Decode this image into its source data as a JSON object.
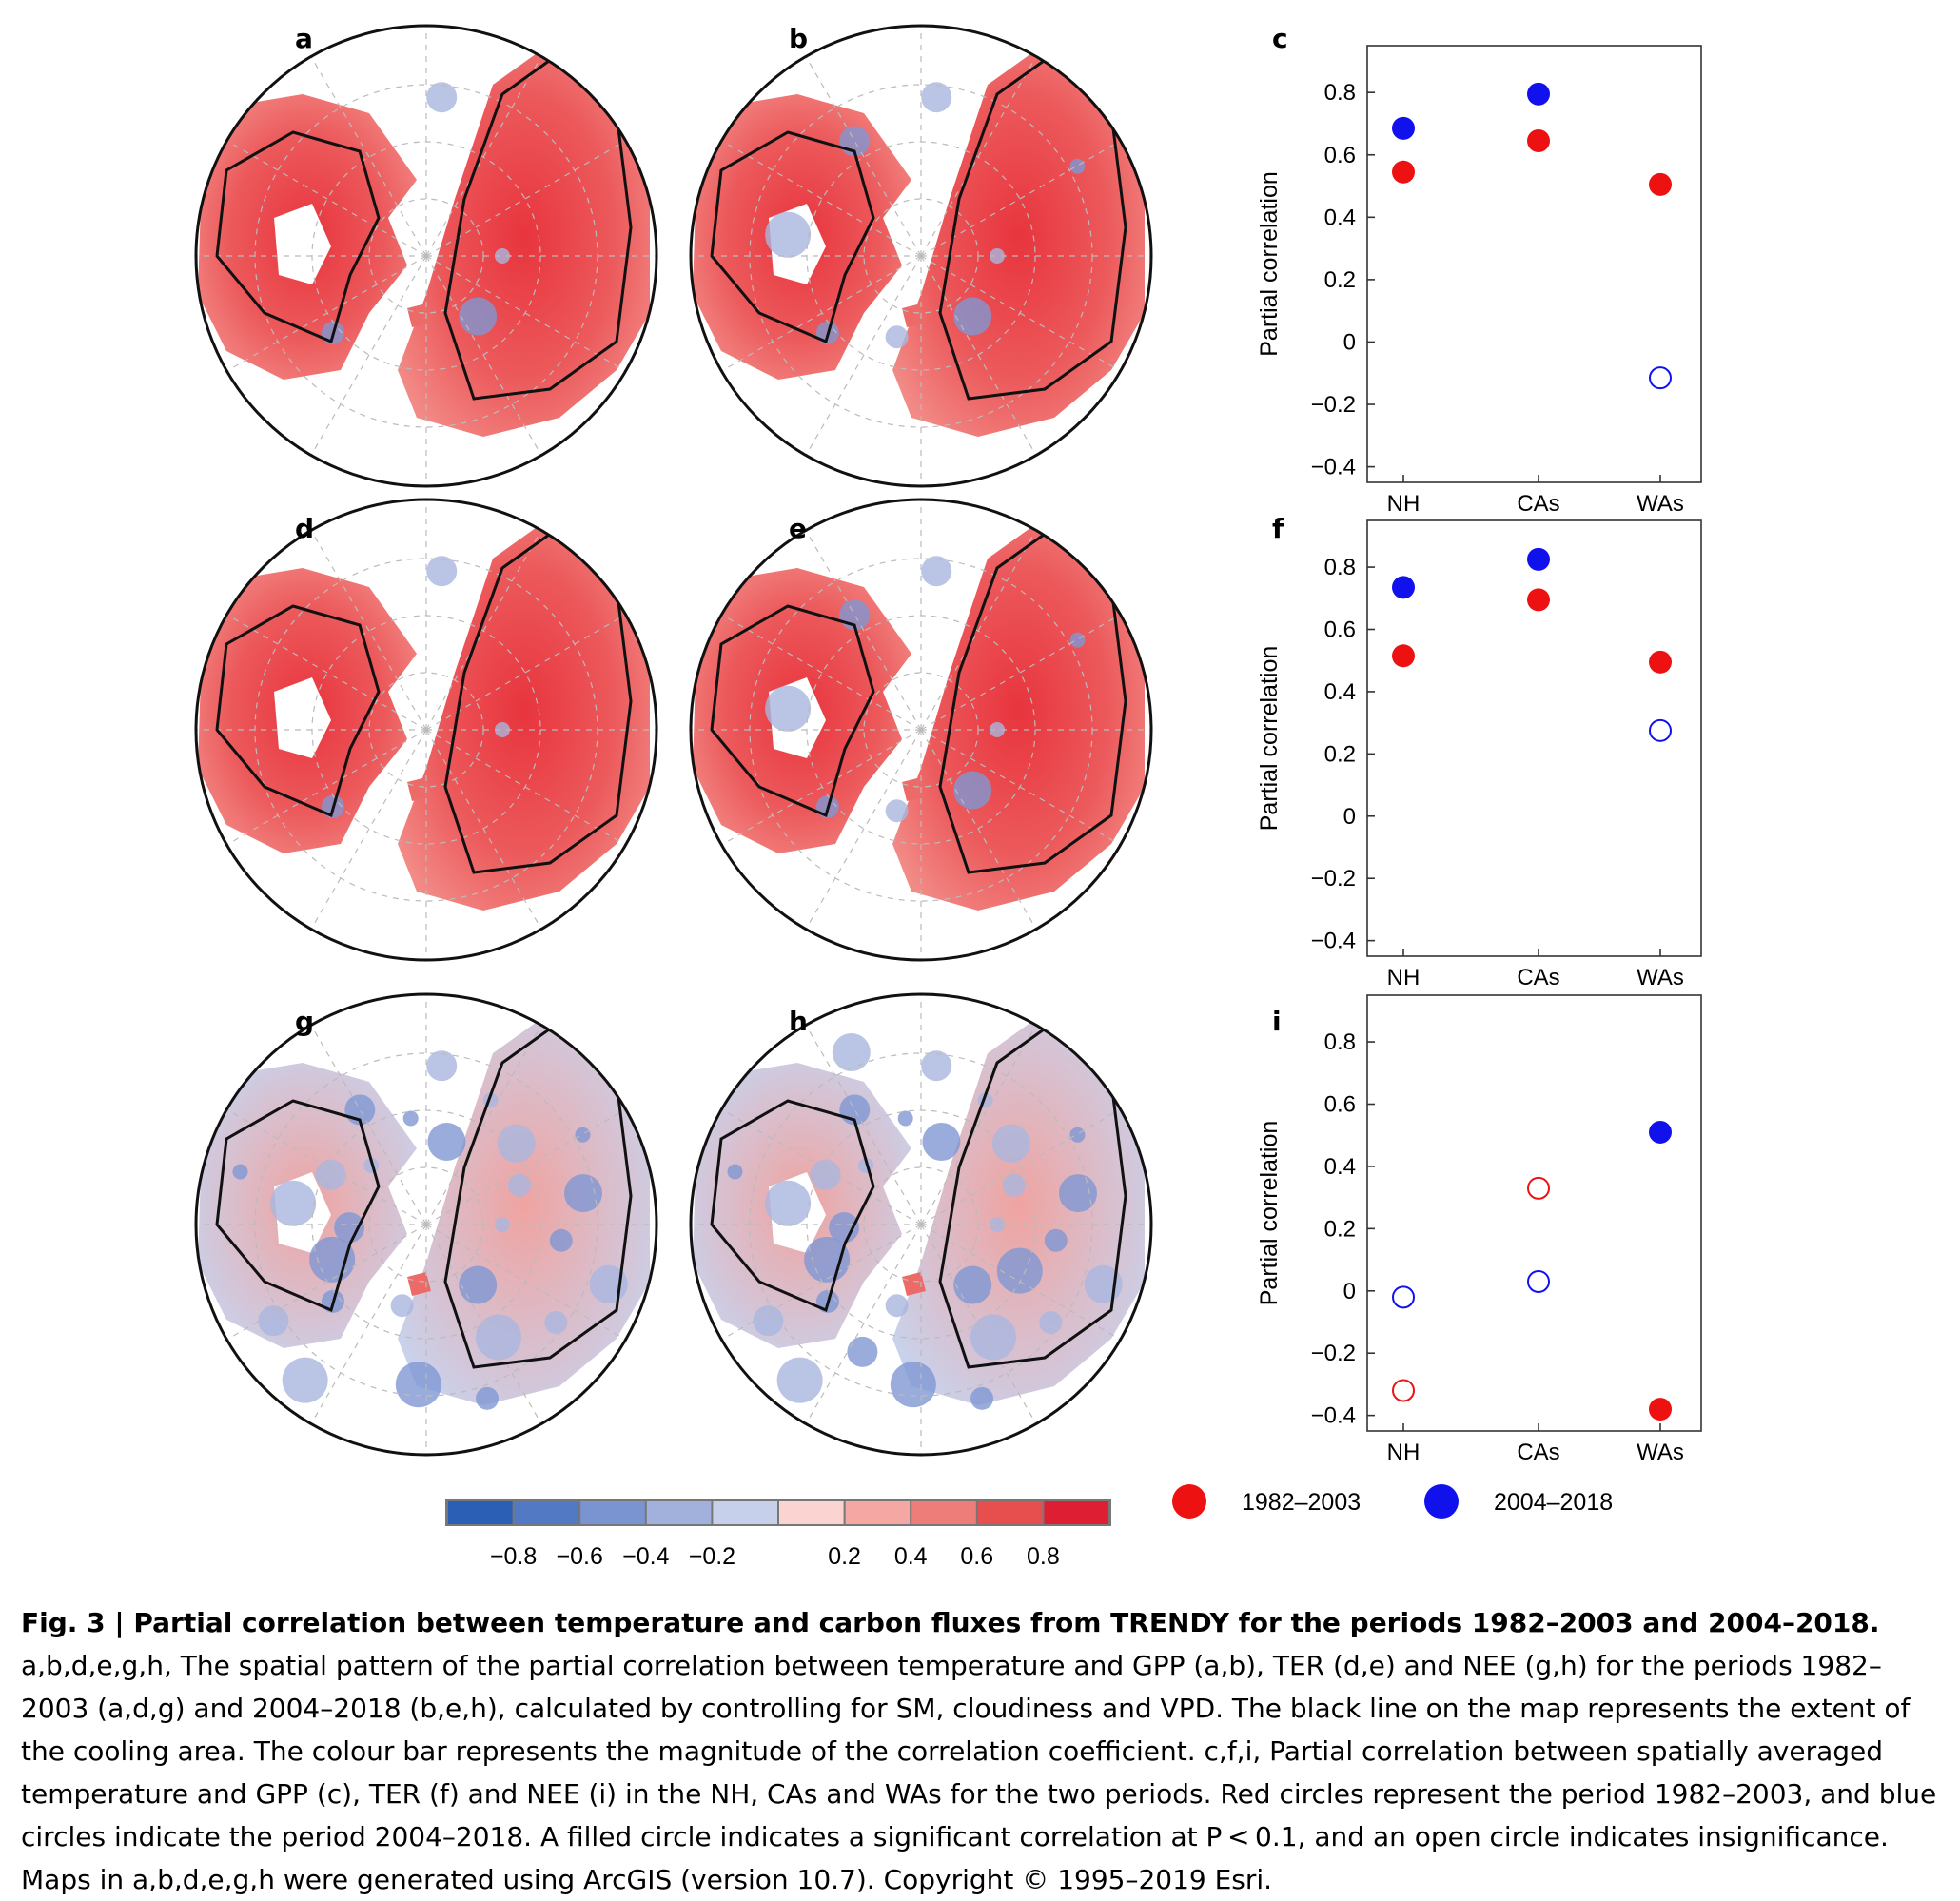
{
  "panel_labels": {
    "maps": [
      "a",
      "b",
      "d",
      "e",
      "g",
      "h"
    ],
    "charts": [
      "c",
      "f",
      "i"
    ]
  },
  "colorbar": {
    "colors": [
      "#2b5fb5",
      "#5279c4",
      "#7a93d1",
      "#a2b1dc",
      "#c7d0ea",
      "#fbd3d0",
      "#f4a7a3",
      "#ee7c78",
      "#e64f4e",
      "#de1f33"
    ],
    "ticks": [
      "−0.8",
      "−0.6",
      "−0.4",
      "−0.2",
      "0.2",
      "0.4",
      "0.6",
      "0.8"
    ]
  },
  "legend": [
    {
      "label": "1982–2003",
      "color": "#ee1111"
    },
    {
      "label": "2004–2018",
      "color": "#1111ee"
    }
  ],
  "chart_data": [
    {
      "type": "scatter",
      "panel": "c",
      "categories": [
        "NH",
        "CAs",
        "WAs"
      ],
      "ylabel": "Partial correlation",
      "ylim": [
        -0.45,
        0.95
      ],
      "yticks": [
        "−0.4",
        "−0.2",
        "0",
        "0.2",
        "0.4",
        "0.6",
        "0.8"
      ],
      "series": [
        {
          "period": "1982-2003",
          "color": "#ee1111",
          "values": [
            0.545,
            0.645,
            0.505
          ],
          "filled": [
            true,
            true,
            true
          ]
        },
        {
          "period": "2004-2018",
          "color": "#1111ee",
          "values": [
            0.685,
            0.795,
            -0.115
          ],
          "filled": [
            true,
            true,
            false
          ]
        }
      ]
    },
    {
      "type": "scatter",
      "panel": "f",
      "categories": [
        "NH",
        "CAs",
        "WAs"
      ],
      "ylabel": "Partial correlation",
      "ylim": [
        -0.45,
        0.95
      ],
      "yticks": [
        "−0.4",
        "−0.2",
        "0",
        "0.2",
        "0.4",
        "0.6",
        "0.8"
      ],
      "series": [
        {
          "period": "1982-2003",
          "color": "#ee1111",
          "values": [
            0.515,
            0.695,
            0.495
          ],
          "filled": [
            true,
            true,
            true
          ]
        },
        {
          "period": "2004-2018",
          "color": "#1111ee",
          "values": [
            0.735,
            0.825,
            0.275
          ],
          "filled": [
            true,
            true,
            false
          ]
        }
      ]
    },
    {
      "type": "scatter",
      "panel": "i",
      "categories": [
        "NH",
        "CAs",
        "WAs"
      ],
      "ylabel": "Partial correlation",
      "ylim": [
        -0.45,
        0.95
      ],
      "yticks": [
        "−0.4",
        "−0.2",
        "0",
        "0.2",
        "0.4",
        "0.6",
        "0.8"
      ],
      "series": [
        {
          "period": "1982-2003",
          "color": "#ee1111",
          "values": [
            -0.32,
            0.33,
            -0.38
          ],
          "filled": [
            false,
            false,
            true
          ]
        },
        {
          "period": "2004-2018",
          "color": "#1111ee",
          "values": [
            -0.02,
            0.03,
            0.51
          ],
          "filled": [
            false,
            false,
            true
          ]
        }
      ]
    }
  ],
  "caption": {
    "title": "Fig. 3 | Partial correlation between temperature and carbon fluxes from TRENDY for the periods 1982–2003 and 2004–2018.",
    "body": "a,b,d,e,g,h, The spatial pattern of the partial correlation between temperature and GPP (a,b), TER (d,e) and NEE (g,h) for the periods 1982–2003 (a,d,g) and 2004–2018 (b,e,h), calculated by controlling for SM, cloudiness and VPD. The black line on the map represents the extent of the cooling area. The colour bar represents the magnitude of the correlation coefficient. c,f,i, Partial correlation between spatially averaged temperature and GPP (c), TER (f) and NEE (i) in the NH, CAs and WAs for the two periods. Red circles represent the period 1982–2003, and blue circles indicate the period 2004–2018. A filled circle indicates a significant correlation at P < 0.1, and an open circle indicates insignificance. Maps in a,b,d,e,g,h were generated using ArcGIS (version 10.7). Copyright © 1995–2019 Esri."
  }
}
